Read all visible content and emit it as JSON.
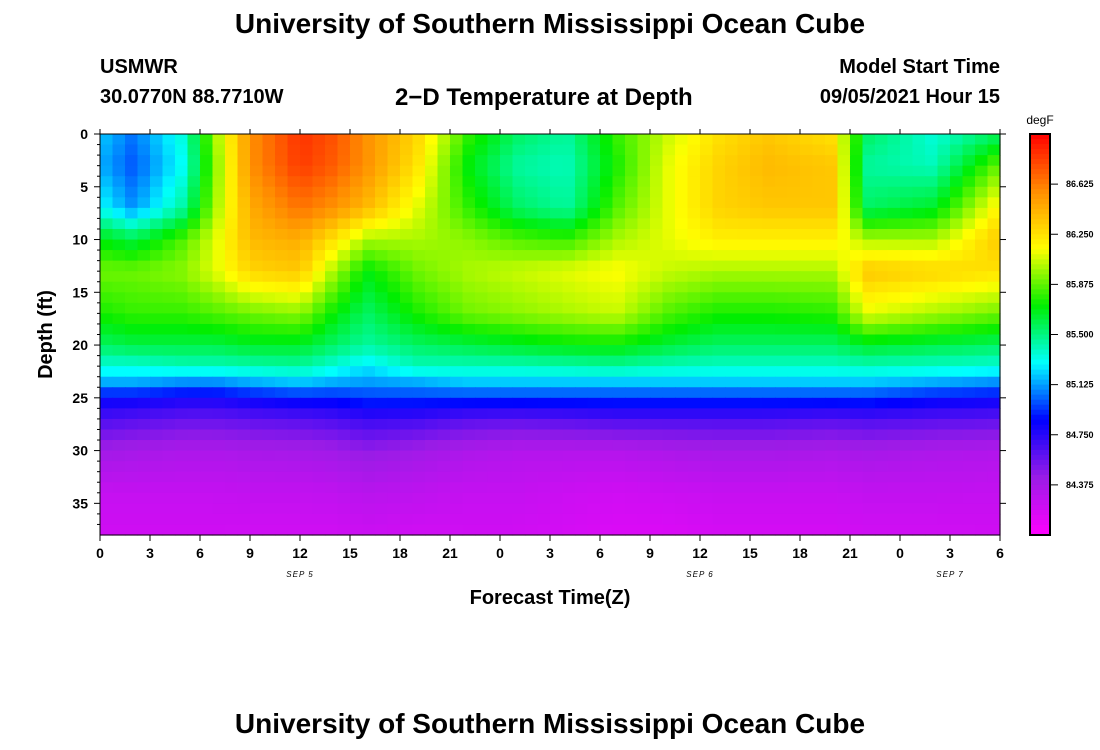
{
  "header": {
    "title": "University of Southern Mississippi Ocean Cube",
    "station": "USMWR",
    "coords": "30.0770N  88.7710W",
    "plot_title": "2−D Temperature at Depth",
    "model_start_label": "Model Start Time",
    "model_start_value": "09/05/2021 Hour 15"
  },
  "footer": {
    "title": "University of Southern Mississippi Ocean Cube"
  },
  "chart_data": {
    "type": "heatmap",
    "title": "2-D Temperature at Depth",
    "xlabel": "Forecast Time(Z)",
    "ylabel": "Depth (ft)",
    "x_range": [
      0,
      54
    ],
    "y_range": [
      0,
      38
    ],
    "x_tick_values": [
      0,
      3,
      6,
      9,
      12,
      15,
      18,
      21,
      24,
      27,
      30,
      33,
      36,
      39,
      42,
      45,
      48,
      51,
      54
    ],
    "x_tick_labels": [
      "0",
      "3",
      "6",
      "9",
      "12",
      "15",
      "18",
      "21",
      "0",
      "3",
      "6",
      "9",
      "12",
      "15",
      "18",
      "21",
      "0",
      "3",
      "6"
    ],
    "y_tick_values": [
      0,
      5,
      10,
      15,
      20,
      25,
      30,
      35
    ],
    "y_tick_labels": [
      "0",
      "5",
      "10",
      "15",
      "20",
      "25",
      "30",
      "35"
    ],
    "day_labels": [
      {
        "x": 12,
        "label": "SEP 5"
      },
      {
        "x": 36,
        "label": "SEP 6"
      },
      {
        "x": 51,
        "label": "SEP 7"
      }
    ],
    "colorbar": {
      "unit": "degF",
      "min": 84.0,
      "max": 87.0,
      "tick_values": [
        84.375,
        84.75,
        85.125,
        85.5,
        85.875,
        86.25,
        86.625
      ],
      "tick_labels": [
        "84.375",
        "84.750",
        "85.125",
        "85.500",
        "85.875",
        "86.250",
        "86.625"
      ],
      "colors": [
        "#ff00ff",
        "#9a1ce6",
        "#0000ff",
        "#00ffff",
        "#00ee00",
        "#ffff00",
        "#ff8c00",
        "#ff0000"
      ]
    },
    "profile_depths": [
      0,
      3,
      7,
      10,
      13,
      17,
      20,
      22,
      23.5,
      25,
      27,
      30,
      34,
      38
    ],
    "profiles": [
      {
        "hour": 0,
        "temps": [
          85.2,
          85.15,
          85.3,
          85.7,
          85.9,
          85.75,
          85.55,
          85.35,
          85.15,
          84.85,
          84.65,
          84.4,
          84.25,
          84.2
        ]
      },
      {
        "hour": 2,
        "temps": [
          85.05,
          85.0,
          85.1,
          85.6,
          85.9,
          85.8,
          85.6,
          85.35,
          85.15,
          84.85,
          84.62,
          84.38,
          84.25,
          84.2
        ]
      },
      {
        "hour": 5,
        "temps": [
          85.35,
          85.3,
          85.45,
          85.85,
          85.95,
          85.8,
          85.6,
          85.4,
          85.1,
          84.8,
          84.58,
          84.35,
          84.25,
          84.2
        ]
      },
      {
        "hour": 7,
        "temps": [
          86.0,
          85.95,
          86.0,
          86.1,
          86.1,
          85.85,
          85.6,
          85.4,
          85.1,
          84.8,
          84.58,
          84.35,
          84.25,
          84.2
        ]
      },
      {
        "hour": 9,
        "temps": [
          86.55,
          86.55,
          86.45,
          86.4,
          86.3,
          85.9,
          85.65,
          85.42,
          85.15,
          84.85,
          84.6,
          84.37,
          84.26,
          84.2
        ]
      },
      {
        "hour": 12,
        "temps": [
          86.85,
          86.82,
          86.65,
          86.45,
          86.35,
          85.95,
          85.65,
          85.45,
          85.2,
          84.9,
          84.62,
          84.38,
          84.26,
          84.2
        ]
      },
      {
        "hour": 14,
        "temps": [
          86.75,
          86.72,
          86.55,
          86.25,
          86.0,
          85.72,
          85.55,
          85.35,
          85.15,
          84.9,
          84.65,
          84.4,
          84.27,
          84.2
        ]
      },
      {
        "hour": 16,
        "temps": [
          86.55,
          86.55,
          86.4,
          86.0,
          85.7,
          85.55,
          85.45,
          85.25,
          85.12,
          84.95,
          84.7,
          84.45,
          84.3,
          84.22
        ]
      },
      {
        "hour": 19,
        "temps": [
          86.3,
          86.25,
          86.1,
          86.0,
          85.9,
          85.75,
          85.55,
          85.4,
          85.15,
          84.95,
          84.68,
          84.4,
          84.28,
          84.2
        ]
      },
      {
        "hour": 22,
        "temps": [
          85.8,
          85.7,
          85.8,
          85.95,
          86.0,
          85.9,
          85.6,
          85.4,
          85.2,
          84.95,
          84.62,
          84.35,
          84.25,
          84.2
        ]
      },
      {
        "hour": 25,
        "temps": [
          85.55,
          85.45,
          85.55,
          85.85,
          86.05,
          85.95,
          85.65,
          85.4,
          85.2,
          84.95,
          84.6,
          84.32,
          84.25,
          84.2
        ]
      },
      {
        "hour": 28,
        "temps": [
          85.45,
          85.4,
          85.45,
          85.8,
          86.1,
          86.0,
          85.7,
          85.42,
          85.2,
          84.95,
          84.62,
          84.32,
          84.22,
          84.18
        ]
      },
      {
        "hour": 31,
        "temps": [
          85.8,
          85.75,
          85.85,
          86.0,
          86.15,
          86.05,
          85.72,
          85.45,
          85.2,
          84.95,
          84.65,
          84.32,
          84.2,
          84.15
        ]
      },
      {
        "hour": 34,
        "temps": [
          86.05,
          86.1,
          86.1,
          86.1,
          86.05,
          85.85,
          85.62,
          85.4,
          85.2,
          84.95,
          84.65,
          84.35,
          84.22,
          84.15
        ]
      },
      {
        "hour": 37,
        "temps": [
          86.25,
          86.3,
          86.3,
          86.2,
          86.0,
          85.75,
          85.55,
          85.38,
          85.2,
          84.95,
          84.65,
          84.38,
          84.24,
          84.18
        ]
      },
      {
        "hour": 40,
        "temps": [
          86.35,
          86.4,
          86.35,
          86.2,
          86.0,
          85.75,
          85.55,
          85.38,
          85.2,
          84.95,
          84.65,
          84.38,
          84.24,
          84.18
        ]
      },
      {
        "hour": 44,
        "temps": [
          86.25,
          86.35,
          86.35,
          86.2,
          86.0,
          85.78,
          85.55,
          85.38,
          85.2,
          84.95,
          84.62,
          84.36,
          84.24,
          84.18
        ]
      },
      {
        "hour": 46,
        "temps": [
          85.55,
          85.45,
          85.55,
          86.0,
          86.35,
          86.1,
          85.65,
          85.4,
          85.2,
          84.95,
          84.65,
          84.38,
          84.26,
          84.2
        ]
      },
      {
        "hour": 50,
        "temps": [
          85.35,
          85.4,
          85.65,
          86.0,
          86.3,
          86.0,
          85.6,
          85.38,
          85.15,
          84.88,
          84.62,
          84.35,
          84.26,
          84.2
        ]
      },
      {
        "hour": 54,
        "temps": [
          85.55,
          85.9,
          86.2,
          86.35,
          86.25,
          85.9,
          85.55,
          85.35,
          85.1,
          84.85,
          84.6,
          84.33,
          84.25,
          84.2
        ]
      }
    ]
  }
}
